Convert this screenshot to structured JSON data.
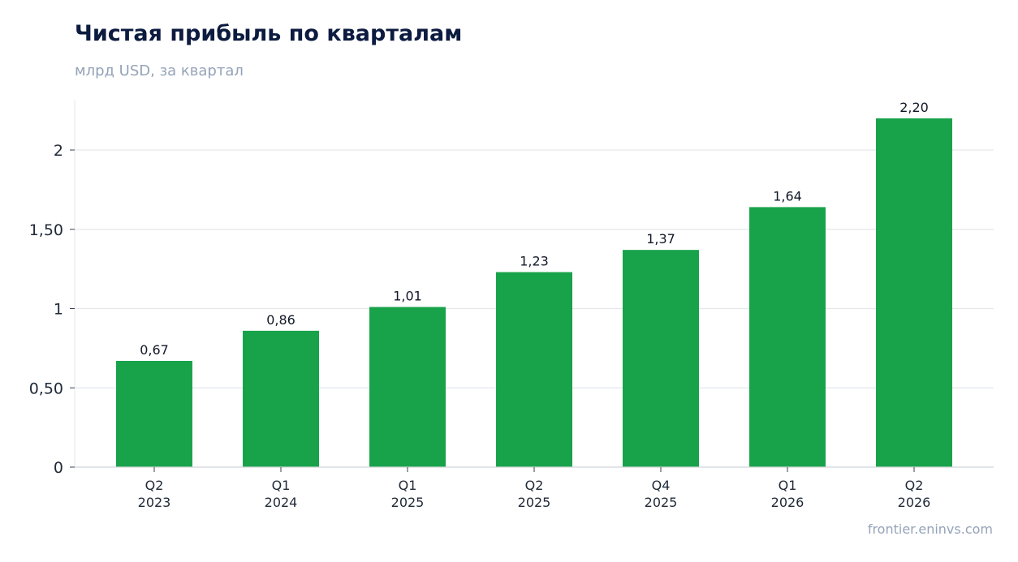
{
  "title": "Чистая прибыль по кварталам",
  "subtitle": "млрд USD, за квартал",
  "source": "frontier.eninvs.com",
  "colors": {
    "bar": "#18a34a",
    "grid": "#e5e7eb",
    "title": "#0c1b3f",
    "muted": "#94a3b8"
  },
  "chart_data": {
    "type": "bar",
    "categories": [
      [
        "Q2",
        "2023"
      ],
      [
        "Q1",
        "2024"
      ],
      [
        "Q1",
        "2025"
      ],
      [
        "Q2",
        "2025"
      ],
      [
        "Q4",
        "2025"
      ],
      [
        "Q1",
        "2026"
      ],
      [
        "Q2",
        "2026"
      ]
    ],
    "values": [
      0.67,
      0.86,
      1.01,
      1.23,
      1.37,
      1.64,
      2.2
    ],
    "value_labels": [
      "0,67",
      "0,86",
      "1,01",
      "1,23",
      "1,37",
      "1,64",
      "2,20"
    ],
    "yticks": [
      0,
      0.5,
      1,
      1.5,
      2
    ],
    "ytick_labels": [
      "0",
      "0,50",
      "1",
      "1,50",
      "2"
    ],
    "ylim": [
      0,
      2.32
    ],
    "grid": true
  }
}
